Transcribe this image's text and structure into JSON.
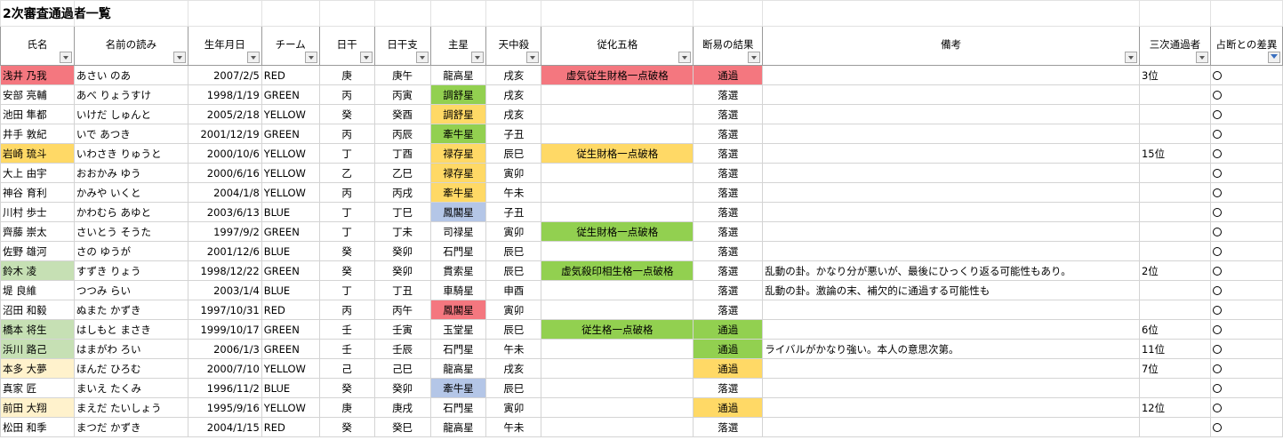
{
  "sheet": {
    "title": "2次審査通過者一覧",
    "headers": [
      "氏名",
      "名前の読み",
      "生年月日",
      "チーム",
      "日干",
      "日干支",
      "主星",
      "天中殺",
      "従化五格",
      "断易の結果",
      "備考",
      "三次通過者",
      "占断との差異"
    ],
    "rows": [
      {
        "name": "浅井 乃我",
        "reading": "あさい のあ",
        "birth": "2007/2/5",
        "team": "RED",
        "nikkan": "庚",
        "nikkanshi": "庚午",
        "shusei": "龍高星",
        "tenchu": "戌亥",
        "jyuka": "虚気従生財格一点破格",
        "result": "通過",
        "note": "",
        "third": "3位",
        "mark": "○"
      },
      {
        "name": "安部 亮輔",
        "reading": "あべ りょうすけ",
        "birth": "1998/1/19",
        "team": "GREEN",
        "nikkan": "丙",
        "nikkanshi": "丙寅",
        "shusei": "調舒星",
        "tenchu": "戌亥",
        "jyuka": "",
        "result": "落選",
        "note": "",
        "third": "",
        "mark": "○"
      },
      {
        "name": "池田 隼都",
        "reading": "いけだ しゅんと",
        "birth": "2005/2/18",
        "team": "YELLOW",
        "nikkan": "癸",
        "nikkanshi": "癸酉",
        "shusei": "調舒星",
        "tenchu": "戌亥",
        "jyuka": "",
        "result": "落選",
        "note": "",
        "third": "",
        "mark": "○"
      },
      {
        "name": "井手 敦紀",
        "reading": "いで あつき",
        "birth": "2001/12/19",
        "team": "GREEN",
        "nikkan": "丙",
        "nikkanshi": "丙辰",
        "shusei": "牽牛星",
        "tenchu": "子丑",
        "jyuka": "",
        "result": "落選",
        "note": "",
        "third": "",
        "mark": "○"
      },
      {
        "name": "岩崎 琉斗",
        "reading": "いわさき りゅうと",
        "birth": "2000/10/6",
        "team": "YELLOW",
        "nikkan": "丁",
        "nikkanshi": "丁酉",
        "shusei": "禄存星",
        "tenchu": "辰巳",
        "jyuka": "従生財格一点破格",
        "result": "落選",
        "note": "",
        "third": "15位",
        "mark": "○"
      },
      {
        "name": "大上 由宇",
        "reading": "おおかみ ゆう",
        "birth": "2000/6/16",
        "team": "YELLOW",
        "nikkan": "乙",
        "nikkanshi": "乙巳",
        "shusei": "禄存星",
        "tenchu": "寅卯",
        "jyuka": "",
        "result": "落選",
        "note": "",
        "third": "",
        "mark": "○"
      },
      {
        "name": "神谷 育利",
        "reading": "かみや いくと",
        "birth": "2004/1/8",
        "team": "YELLOW",
        "nikkan": "丙",
        "nikkanshi": "丙戌",
        "shusei": "牽牛星",
        "tenchu": "午未",
        "jyuka": "",
        "result": "落選",
        "note": "",
        "third": "",
        "mark": "○"
      },
      {
        "name": "川村 歩士",
        "reading": "かわむら あゆと",
        "birth": "2003/6/13",
        "team": "BLUE",
        "nikkan": "丁",
        "nikkanshi": "丁巳",
        "shusei": "鳳閣星",
        "tenchu": "子丑",
        "jyuka": "",
        "result": "落選",
        "note": "",
        "third": "",
        "mark": "○"
      },
      {
        "name": "齊藤 崇太",
        "reading": "さいとう そうた",
        "birth": "1997/9/2",
        "team": "GREEN",
        "nikkan": "丁",
        "nikkanshi": "丁未",
        "shusei": "司禄星",
        "tenchu": "寅卯",
        "jyuka": "従生財格一点破格",
        "result": "落選",
        "note": "",
        "third": "",
        "mark": "○"
      },
      {
        "name": "佐野 雄河",
        "reading": "さの ゆうが",
        "birth": "2001/12/6",
        "team": "BLUE",
        "nikkan": "癸",
        "nikkanshi": "癸卯",
        "shusei": "石門星",
        "tenchu": "辰巳",
        "jyuka": "",
        "result": "落選",
        "note": "",
        "third": "",
        "mark": "○"
      },
      {
        "name": "鈴木 凌",
        "reading": "すずき りょう",
        "birth": "1998/12/22",
        "team": "GREEN",
        "nikkan": "癸",
        "nikkanshi": "癸卯",
        "shusei": "貫索星",
        "tenchu": "辰巳",
        "jyuka": "虚気殺印相生格一点破格",
        "result": "落選",
        "note": "乱動の卦。かなり分が悪いが、最後にひっくり返る可能性もあり。",
        "third": "2位",
        "mark": "○"
      },
      {
        "name": "堤 良維",
        "reading": "つつみ らい",
        "birth": "2003/1/4",
        "team": "BLUE",
        "nikkan": "丁",
        "nikkanshi": "丁丑",
        "shusei": "車騎星",
        "tenchu": "申酉",
        "jyuka": "",
        "result": "落選",
        "note": "乱動の卦。激論の末、補欠的に通過する可能性も",
        "third": "",
        "mark": "○"
      },
      {
        "name": "沼田 和毅",
        "reading": "ぬまた かずき",
        "birth": "1997/10/31",
        "team": "RED",
        "nikkan": "丙",
        "nikkanshi": "丙午",
        "shusei": "鳳閣星",
        "tenchu": "寅卯",
        "jyuka": "",
        "result": "落選",
        "note": "",
        "third": "",
        "mark": "○"
      },
      {
        "name": "橋本 将生",
        "reading": "はしもと まさき",
        "birth": "1999/10/17",
        "team": "GREEN",
        "nikkan": "壬",
        "nikkanshi": "壬寅",
        "shusei": "玉堂星",
        "tenchu": "辰巳",
        "jyuka": "従生格一点破格",
        "result": "通過",
        "note": "",
        "third": "6位",
        "mark": "○"
      },
      {
        "name": "浜川 路己",
        "reading": "はまがわ ろい",
        "birth": "2006/1/3",
        "team": "GREEN",
        "nikkan": "壬",
        "nikkanshi": "壬辰",
        "shusei": "石門星",
        "tenchu": "午未",
        "jyuka": "",
        "result": "通過",
        "note": "ライバルがかなり強い。本人の意思次第。",
        "third": "11位",
        "mark": "○"
      },
      {
        "name": "本多 大夢",
        "reading": "ほんだ ひろむ",
        "birth": "2000/7/10",
        "team": "YELLOW",
        "nikkan": "己",
        "nikkanshi": "己巳",
        "shusei": "龍高星",
        "tenchu": "戌亥",
        "jyuka": "",
        "result": "通過",
        "note": "",
        "third": "7位",
        "mark": "○"
      },
      {
        "name": "真家 匠",
        "reading": "まいえ たくみ",
        "birth": "1996/11/2",
        "team": "BLUE",
        "nikkan": "癸",
        "nikkanshi": "癸卯",
        "shusei": "牽牛星",
        "tenchu": "辰巳",
        "jyuka": "",
        "result": "落選",
        "note": "",
        "third": "",
        "mark": "○"
      },
      {
        "name": "前田 大翔",
        "reading": "まえだ たいしょう",
        "birth": "1995/9/16",
        "team": "YELLOW",
        "nikkan": "庚",
        "nikkanshi": "庚戌",
        "shusei": "石門星",
        "tenchu": "寅卯",
        "jyuka": "",
        "result": "通過",
        "note": "",
        "third": "12位",
        "mark": "○"
      },
      {
        "name": "松田 和季",
        "reading": "まつだ かずき",
        "birth": "2004/1/15",
        "team": "RED",
        "nikkan": "癸",
        "nikkanshi": "癸巳",
        "shusei": "龍高星",
        "tenchu": "午未",
        "jyuka": "",
        "result": "落選",
        "note": "",
        "third": "",
        "mark": "○"
      }
    ]
  },
  "fills": {
    "name": {
      "浅井 乃我": "#f4777f",
      "岩崎 琉斗": "#ffd966",
      "鈴木 凌": "#c6e0b4",
      "橋本 将生": "#c6e0b4",
      "浜川 路己": "#c6e0b4",
      "本多 大夢": "#fff2cc",
      "前田 大翔": "#fff2cc"
    },
    "shusei": {
      "安部 亮輔": "#92d050",
      "池田 隼都": "#ffd966",
      "井手 敦紀": "#92d050",
      "岩崎 琉斗": "#ffd966",
      "大上 由宇": "#ffd966",
      "神谷 育利": "#ffd966",
      "川村 歩士": "#b4c6e7",
      "沼田 和毅": "#f4777f",
      "真家 匠": "#b4c6e7"
    },
    "jyuka": {
      "浅井 乃我": "#f4777f",
      "岩崎 琉斗": "#ffd966",
      "齊藤 崇太": "#92d050",
      "鈴木 凌": "#92d050",
      "橋本 将生": "#92d050"
    },
    "result": {
      "浅井 乃我": "#f4777f",
      "橋本 将生": "#92d050",
      "浜川 路己": "#92d050",
      "本多 大夢": "#ffd966",
      "前田 大翔": "#ffd966"
    }
  }
}
